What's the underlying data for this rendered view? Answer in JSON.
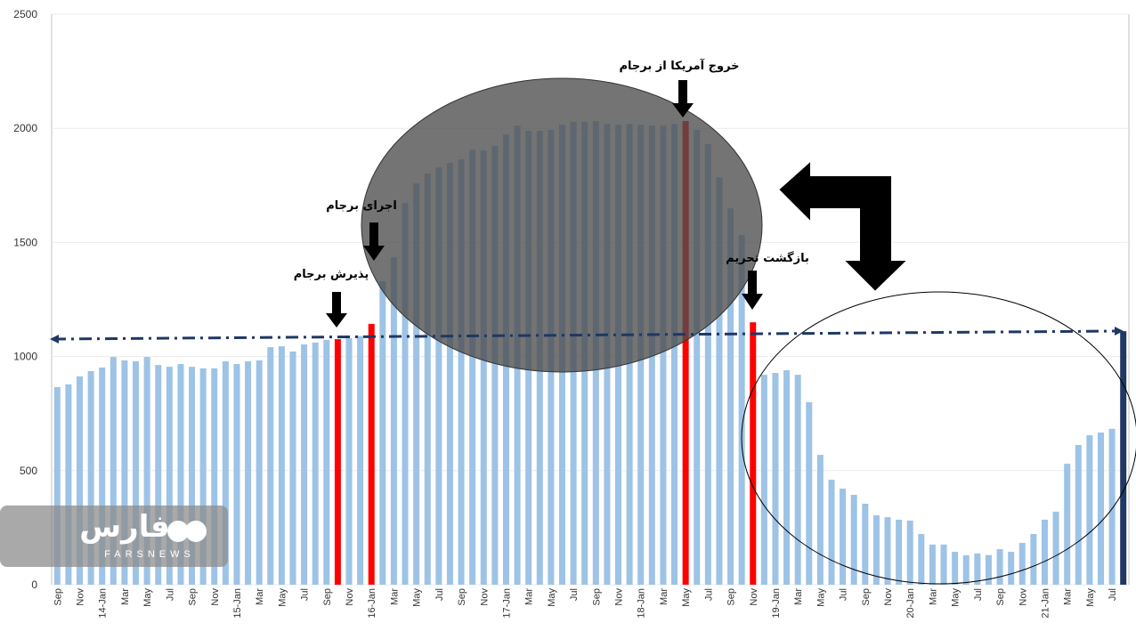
{
  "chart_data": {
    "type": "bar",
    "categories": [
      "Sep",
      null,
      "Nov",
      null,
      "14-Jan",
      null,
      "Mar",
      null,
      "May",
      null,
      "Jul",
      null,
      "Sep",
      null,
      "Nov",
      null,
      "15-Jan",
      null,
      "Mar",
      null,
      "May",
      null,
      "Jul",
      null,
      "Sep",
      null,
      "Nov",
      null,
      "16-Jan",
      null,
      "Mar",
      null,
      "May",
      null,
      "Jul",
      null,
      "Sep",
      null,
      "Nov",
      null,
      "17-Jan",
      null,
      "Mar",
      null,
      "May",
      null,
      "Jul",
      null,
      "Sep",
      null,
      "Nov",
      null,
      "18-Jan",
      null,
      "Mar",
      null,
      "May",
      null,
      "Jul",
      null,
      "Sep",
      null,
      "Nov",
      null,
      "19-Jan",
      null,
      "Mar",
      null,
      "May",
      null,
      "Jul",
      null,
      "Sep",
      null,
      "Nov",
      null,
      "20-Jan",
      null,
      "Mar",
      null,
      "May",
      null,
      "Jul",
      null,
      "Sep",
      null,
      "Nov",
      null,
      "21-Jan",
      null,
      "Mar",
      null,
      "May",
      null,
      "Jul",
      null
    ],
    "values": [
      866,
      878,
      913,
      936,
      952,
      998,
      983,
      979,
      998,
      963,
      955,
      967,
      955,
      948,
      948,
      979,
      967,
      979,
      983,
      1041,
      1045,
      1022,
      1053,
      1061,
      1073,
      1076,
      1080,
      1090,
      1143,
      1330,
      1435,
      1673,
      1759,
      1802,
      1829,
      1849,
      1864,
      1907,
      1903,
      1923,
      1973,
      2012,
      1989,
      1989,
      1993,
      2016,
      2028,
      2028,
      2032,
      2020,
      2016,
      2020,
      2016,
      2012,
      2012,
      2020,
      2032,
      1993,
      1931,
      1786,
      1650,
      1533,
      1150,
      920,
      928,
      940,
      920,
      800,
      569,
      460,
      421,
      394,
      355,
      304,
      296,
      285,
      281,
      222,
      176,
      176,
      144,
      129,
      137,
      130,
      156,
      144,
      183,
      222,
      285,
      320,
      530,
      612,
      655,
      667,
      683,
      1111
    ],
    "colors": [
      "#9dc3e6",
      "#9dc3e6",
      "#9dc3e6",
      "#9dc3e6",
      "#9dc3e6",
      "#9dc3e6",
      "#9dc3e6",
      "#9dc3e6",
      "#9dc3e6",
      "#9dc3e6",
      "#9dc3e6",
      "#9dc3e6",
      "#9dc3e6",
      "#9dc3e6",
      "#9dc3e6",
      "#9dc3e6",
      "#9dc3e6",
      "#9dc3e6",
      "#9dc3e6",
      "#9dc3e6",
      "#9dc3e6",
      "#9dc3e6",
      "#9dc3e6",
      "#9dc3e6",
      "#9dc3e6",
      "#ff0000",
      "#9dc3e6",
      "#9dc3e6",
      "#ff0000",
      "#9dc3e6",
      "#9dc3e6",
      "#9dc3e6",
      "#9dc3e6",
      "#9dc3e6",
      "#9dc3e6",
      "#9dc3e6",
      "#9dc3e6",
      "#9dc3e6",
      "#9dc3e6",
      "#9dc3e6",
      "#9dc3e6",
      "#9dc3e6",
      "#9dc3e6",
      "#9dc3e6",
      "#9dc3e6",
      "#9dc3e6",
      "#9dc3e6",
      "#9dc3e6",
      "#9dc3e6",
      "#9dc3e6",
      "#9dc3e6",
      "#9dc3e6",
      "#9dc3e6",
      "#9dc3e6",
      "#9dc3e6",
      "#9dc3e6",
      "#ff0000",
      "#9dc3e6",
      "#9dc3e6",
      "#9dc3e6",
      "#9dc3e6",
      "#9dc3e6",
      "#ff0000",
      "#9dc3e6",
      "#9dc3e6",
      "#9dc3e6",
      "#9dc3e6",
      "#9dc3e6",
      "#9dc3e6",
      "#9dc3e6",
      "#9dc3e6",
      "#9dc3e6",
      "#9dc3e6",
      "#9dc3e6",
      "#9dc3e6",
      "#9dc3e6",
      "#9dc3e6",
      "#9dc3e6",
      "#9dc3e6",
      "#9dc3e6",
      "#9dc3e6",
      "#9dc3e6",
      "#9dc3e6",
      "#9dc3e6",
      "#9dc3e6",
      "#9dc3e6",
      "#9dc3e6",
      "#9dc3e6",
      "#9dc3e6",
      "#9dc3e6",
      "#9dc3e6",
      "#9dc3e6",
      "#9dc3e6",
      "#9dc3e6",
      "#9dc3e6",
      "#1f3864"
    ],
    "ylim": [
      0,
      2500
    ],
    "yticks": [
      0,
      500,
      1000,
      1500,
      2000,
      2500
    ],
    "grid": true,
    "annotations": [
      "خروج آمریکا از برجام",
      "اجرای برجام",
      "پذیرش برجام",
      "بازگشت تحریم"
    ],
    "watermark": [
      "فارس",
      "FARSNEWS"
    ]
  }
}
